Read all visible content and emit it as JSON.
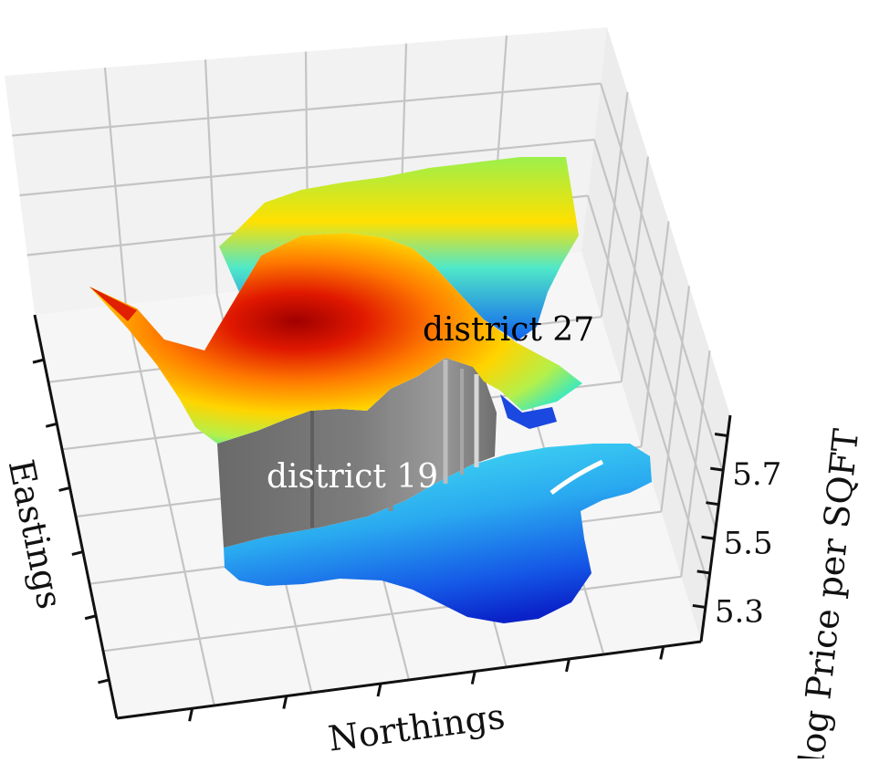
{
  "chart_data": {
    "type": "surface3d",
    "title": "",
    "xlabel": "Northings",
    "ylabel": "Eastings",
    "zlabel": "log Price per SQFT",
    "z_ticks": [
      5.3,
      5.5,
      5.7
    ],
    "grid": true,
    "colormap": "jet",
    "annotations": [
      {
        "text": "district 27",
        "color": "#000000"
      },
      {
        "text": "district 19",
        "color": "#ffffff"
      }
    ],
    "surfaces": [
      {
        "region": "district 27",
        "z_min": 5.55,
        "z_max": 5.85,
        "peak_color": "#b30000"
      },
      {
        "region": "district 19",
        "z_min": 5.3,
        "z_max": 5.45,
        "peak_color": "#33ccee"
      }
    ],
    "boundary_wall_color": "#777777"
  }
}
